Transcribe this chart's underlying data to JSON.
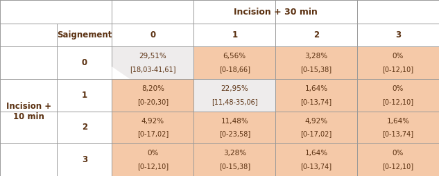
{
  "title": "Incision + 30 min",
  "row_header": "Incision +\n10 min",
  "col_header": "Saignement",
  "row_labels": [
    "0",
    "1",
    "2",
    "3"
  ],
  "col_labels": [
    "0",
    "1",
    "2",
    "3"
  ],
  "cells": [
    [
      [
        "29,51%",
        "[18,03-41,61]"
      ],
      [
        "6,56%",
        "[0-18,66]"
      ],
      [
        "3,28%",
        "[0-15,38]"
      ],
      [
        "0%",
        "[0-12,10]"
      ]
    ],
    [
      [
        "8,20%",
        "[0-20,30]"
      ],
      [
        "22,95%",
        "[11,48-35,06]"
      ],
      [
        "1,64%",
        "[0-13,74]"
      ],
      [
        "0%",
        "[0-12,10]"
      ]
    ],
    [
      [
        "4,92%",
        "[0-17,02]"
      ],
      [
        "11,48%",
        "[0-23,58]"
      ],
      [
        "4,92%",
        "[0-17,02]"
      ],
      [
        "1,64%",
        "[0-13,74]"
      ]
    ],
    [
      [
        "0%",
        "[0-12,10]"
      ],
      [
        "3,28%",
        "[0-15,38]"
      ],
      [
        "1,64%",
        "[0-13,74]"
      ],
      [
        "0%",
        "[0-12,10]"
      ]
    ]
  ],
  "cell_colors": [
    [
      "#eeecec",
      "#f5c9a8",
      "#f5c9a8",
      "#f5c9a8"
    ],
    [
      "#f5c9a8",
      "#eeecec",
      "#f5c9a8",
      "#f5c9a8"
    ],
    [
      "#f5c9a8",
      "#f5c9a8",
      "#f5c9a8",
      "#f5c9a8"
    ],
    [
      "#f5c9a8",
      "#f5c9a8",
      "#f5c9a8",
      "#f5c9a8"
    ]
  ],
  "text_color": "#5a3010",
  "line_color": "#999999",
  "fig_bg": "#ffffff",
  "title_fontsize": 9,
  "header_fontsize": 8.5,
  "cell_fontsize": 7.5,
  "bracket_fontsize": 7.0
}
